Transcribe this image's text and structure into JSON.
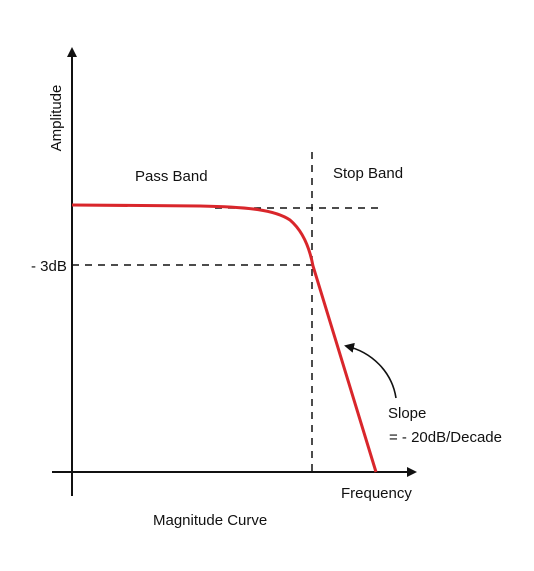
{
  "diagram": {
    "y_axis_label": "Amplitude",
    "x_axis_label": "Frequency",
    "caption": "Magnitude Curve",
    "region_pass": "Pass Band",
    "region_stop": "Stop Band",
    "level_label": "- 3dB",
    "slope_label_line1": "Slope",
    "slope_label_line2": "= - 20dB/Decade",
    "colors": {
      "response_curve": "#d9262b",
      "axes": "#111111",
      "guides": "#111111"
    }
  }
}
